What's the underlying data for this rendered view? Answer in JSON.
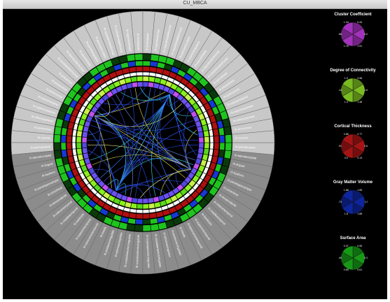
{
  "window": {
    "title": "CU_MBCA"
  },
  "regions": [
    "lh-frontalpole",
    "lh-superiorfrontal",
    "lh-rostralmiddlefrontal",
    "lh-caudalmiddlefrontal",
    "lh-parsopercularis",
    "lh-parstriangularis",
    "lh-parsorbitalis",
    "lh-lateralorbitofrontal",
    "lh-medialorbitofrontal",
    "lh-precentral",
    "lh-paracentral",
    "lh-postcentral",
    "lh-supramarginal",
    "lh-superiorparietal",
    "lh-inferiorparietal",
    "lh-precuneus",
    "lh-cuneus",
    "lh-pericalcarine",
    "lh-lateraloccipital",
    "lh-lingual",
    "lh-fusiform",
    "lh-parahippocampal",
    "lh-entorhinal",
    "lh-temporalpole",
    "lh-inferiortemporal",
    "lh-middletemporal",
    "lh-bankssts",
    "lh-superiortemporal",
    "lh-transversetemporal",
    "lh-insula",
    "lh-posteriorcingulate",
    "lh-isthmuscingulate",
    "lh-caudalanteriorcingulate",
    "lh-rostralanteriorcingulate",
    "rh-rostralanteriorcingulate",
    "rh-caudalanteriorcingulate",
    "rh-isthmuscingulate",
    "rh-posteriorcingulate",
    "rh-insula",
    "rh-transversetemporal",
    "rh-superiortemporal",
    "rh-bankssts",
    "rh-middletemporal",
    "rh-inferiortemporal",
    "rh-temporalpole",
    "rh-entorhinal",
    "rh-parahippocampal",
    "rh-fusiform",
    "rh-lingual",
    "rh-lateraloccipital",
    "rh-pericalcarine",
    "rh-cuneus",
    "rh-precuneus",
    "rh-inferiorparietal",
    "rh-superiorparietal",
    "rh-supramarginal",
    "rh-postcentral",
    "rh-paracentral",
    "rh-precentral",
    "rh-medialorbitofrontal",
    "rh-lateralorbitofrontal",
    "rh-parsorbitalis",
    "rh-parstriangularis",
    "rh-parsopercularis",
    "rh-caudalmiddlefrontal",
    "rh-rostralmiddlefrontal",
    "rh-superiorfrontal",
    "rh-frontalpole"
  ],
  "colors": {
    "sector_upper": "#c8c8c8",
    "sector_lower": "#8c8c8c",
    "ring_green": "#1fc41f",
    "ring_dark_green": "#0a3a0a",
    "ring_blue": "#1538d6",
    "ring_red": "#d81818",
    "ring_white": "#ffffff",
    "ring_lime": "#8cf01c",
    "ring_purple": "#6a52f0",
    "link_blue": "#2a4ce8",
    "link_cyan": "#3ad8e8",
    "link_yellow": "#e8e04a"
  },
  "legend": [
    {
      "title": "Cluster Coefficient",
      "color": "#d040f0",
      "labels": [
        "0.43",
        "0.25",
        "1.91",
        "1.76",
        "1.56",
        "1.34"
      ]
    },
    {
      "title": "Degree of Connectivity",
      "color": "#9cf02a",
      "labels": [
        "2.96",
        "1.64",
        "1.48",
        "1.3",
        "1.14",
        "1.0"
      ]
    },
    {
      "title": "Cortical Thickness",
      "color": "#d41a1a",
      "labels": [
        "2.77",
        "2.60",
        "3.13",
        "3.0",
        "2.91",
        "2.85"
      ]
    },
    {
      "title": "Gray Matter Volume",
      "color": "#1230c8",
      "labels": [
        "1.65",
        "1.5",
        "1.88",
        "1.8",
        "1.73",
        "1.68"
      ]
    },
    {
      "title": "Surface Area",
      "color": "#1ec41e",
      "labels": [
        "0.55",
        "0.38",
        "0.61",
        "0.65",
        "0.46",
        "0.37"
      ]
    }
  ]
}
